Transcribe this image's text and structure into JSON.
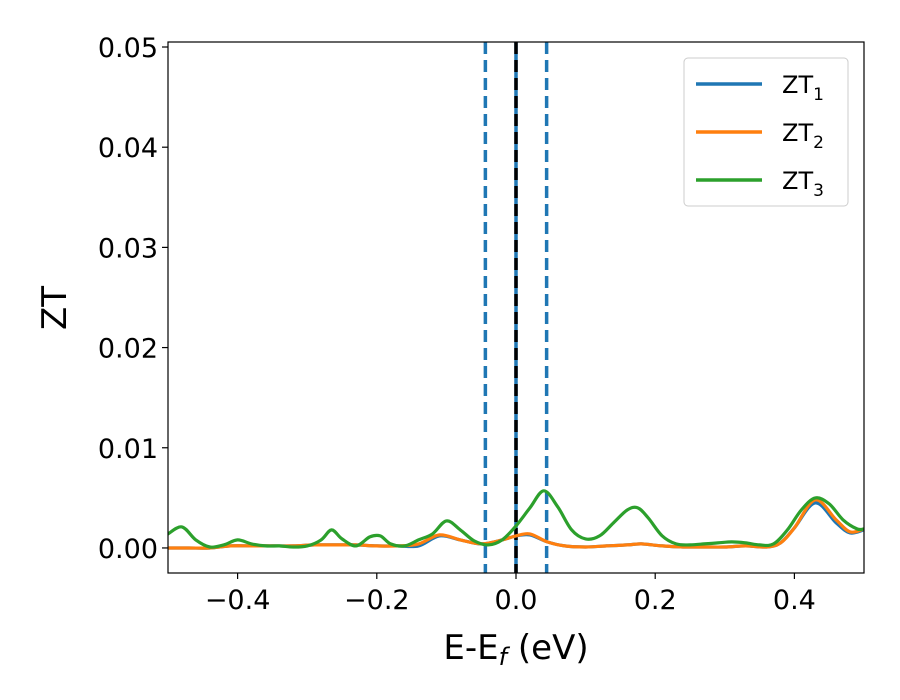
{
  "chart_data": {
    "type": "line",
    "xlabel": "E-E",
    "xlabel_sub": "f",
    "xlabel_unit": " (eV)",
    "ylabel": "ZT",
    "xlim": [
      -0.5,
      0.5
    ],
    "ylim": [
      -0.0025,
      0.0505
    ],
    "xticks": [
      -0.4,
      -0.2,
      0.0,
      0.2,
      0.4
    ],
    "xtick_labels": [
      "−0.4",
      "−0.2",
      "0.0",
      "0.2",
      "0.4"
    ],
    "yticks": [
      0.0,
      0.01,
      0.02,
      0.03,
      0.04,
      0.05
    ],
    "ytick_labels": [
      "0.00",
      "0.01",
      "0.02",
      "0.03",
      "0.04",
      "0.05"
    ],
    "legend_position": "top-right",
    "grid": false,
    "vlines": [
      {
        "x": -0.044,
        "style": "dashed",
        "color": "#1f77b4"
      },
      {
        "x": 0.0,
        "style": "solid",
        "color": "#1f77b4"
      },
      {
        "x": 0.0,
        "style": "dashed",
        "color": "#000000"
      },
      {
        "x": 0.044,
        "style": "dashed",
        "color": "#1f77b4"
      }
    ],
    "series": [
      {
        "name": "ZT",
        "name_sub": "1",
        "color": "#1f77b4",
        "x": [
          -0.5,
          -0.47,
          -0.44,
          -0.41,
          -0.38,
          -0.35,
          -0.32,
          -0.29,
          -0.26,
          -0.23,
          -0.2,
          -0.17,
          -0.14,
          -0.11,
          -0.08,
          -0.05,
          -0.02,
          0.0,
          0.02,
          0.045,
          0.07,
          0.1,
          0.13,
          0.16,
          0.18,
          0.21,
          0.24,
          0.27,
          0.3,
          0.33,
          0.36,
          0.38,
          0.4,
          0.43,
          0.46,
          0.48,
          0.5
        ],
        "y": [
          0.0,
          0.0,
          0.0,
          0.0002,
          0.0002,
          0.0002,
          0.0002,
          0.0003,
          0.0003,
          0.0003,
          0.0002,
          0.0002,
          0.0002,
          0.0012,
          0.0008,
          0.0004,
          0.0008,
          0.0012,
          0.0013,
          0.0006,
          0.0002,
          0.0001,
          0.0002,
          0.0003,
          0.0004,
          0.0002,
          0.0001,
          0.0001,
          0.0001,
          0.0002,
          0.0001,
          0.0005,
          0.002,
          0.0045,
          0.0025,
          0.0015,
          0.0018
        ]
      },
      {
        "name": "ZT",
        "name_sub": "2",
        "color": "#ff7f0e",
        "x": [
          -0.5,
          -0.47,
          -0.44,
          -0.41,
          -0.38,
          -0.35,
          -0.32,
          -0.29,
          -0.26,
          -0.23,
          -0.2,
          -0.17,
          -0.14,
          -0.11,
          -0.08,
          -0.05,
          -0.02,
          0.0,
          0.02,
          0.045,
          0.07,
          0.1,
          0.13,
          0.16,
          0.18,
          0.21,
          0.24,
          0.27,
          0.3,
          0.33,
          0.36,
          0.38,
          0.4,
          0.43,
          0.46,
          0.48,
          0.5
        ],
        "y": [
          0.0,
          0.0,
          0.0,
          0.0002,
          0.0002,
          0.0002,
          0.0002,
          0.0003,
          0.0003,
          0.0003,
          0.0002,
          0.0002,
          0.0004,
          0.0013,
          0.0008,
          0.0004,
          0.0008,
          0.0012,
          0.0014,
          0.0006,
          0.0002,
          0.0001,
          0.0002,
          0.0003,
          0.0004,
          0.0002,
          0.0001,
          0.0001,
          0.0001,
          0.0002,
          0.0001,
          0.0005,
          0.002,
          0.0048,
          0.0028,
          0.0016,
          0.0019
        ]
      },
      {
        "name": "ZT",
        "name_sub": "3",
        "color": "#2ca02c",
        "x": [
          -0.5,
          -0.48,
          -0.46,
          -0.44,
          -0.42,
          -0.4,
          -0.38,
          -0.36,
          -0.34,
          -0.32,
          -0.3,
          -0.28,
          -0.265,
          -0.25,
          -0.23,
          -0.21,
          -0.195,
          -0.18,
          -0.16,
          -0.14,
          -0.12,
          -0.1,
          -0.08,
          -0.06,
          -0.04,
          -0.02,
          0.0,
          0.02,
          0.04,
          0.06,
          0.08,
          0.1,
          0.12,
          0.14,
          0.16,
          0.175,
          0.19,
          0.21,
          0.23,
          0.25,
          0.27,
          0.29,
          0.31,
          0.33,
          0.35,
          0.37,
          0.39,
          0.41,
          0.43,
          0.45,
          0.47,
          0.49,
          0.5
        ],
        "y": [
          0.0014,
          0.0021,
          0.0008,
          0.0001,
          0.0003,
          0.0008,
          0.0004,
          0.0002,
          0.0002,
          0.0001,
          0.0002,
          0.0008,
          0.0018,
          0.0009,
          0.0002,
          0.0011,
          0.0012,
          0.0004,
          0.0002,
          0.0008,
          0.0014,
          0.0027,
          0.0018,
          0.0007,
          0.0003,
          0.0008,
          0.0022,
          0.004,
          0.0057,
          0.0041,
          0.0018,
          0.0009,
          0.0012,
          0.0025,
          0.0038,
          0.004,
          0.003,
          0.0012,
          0.0004,
          0.0003,
          0.0004,
          0.0005,
          0.0006,
          0.0005,
          0.0003,
          0.0004,
          0.0018,
          0.0038,
          0.005,
          0.0044,
          0.0028,
          0.0019,
          0.0019
        ]
      }
    ]
  }
}
